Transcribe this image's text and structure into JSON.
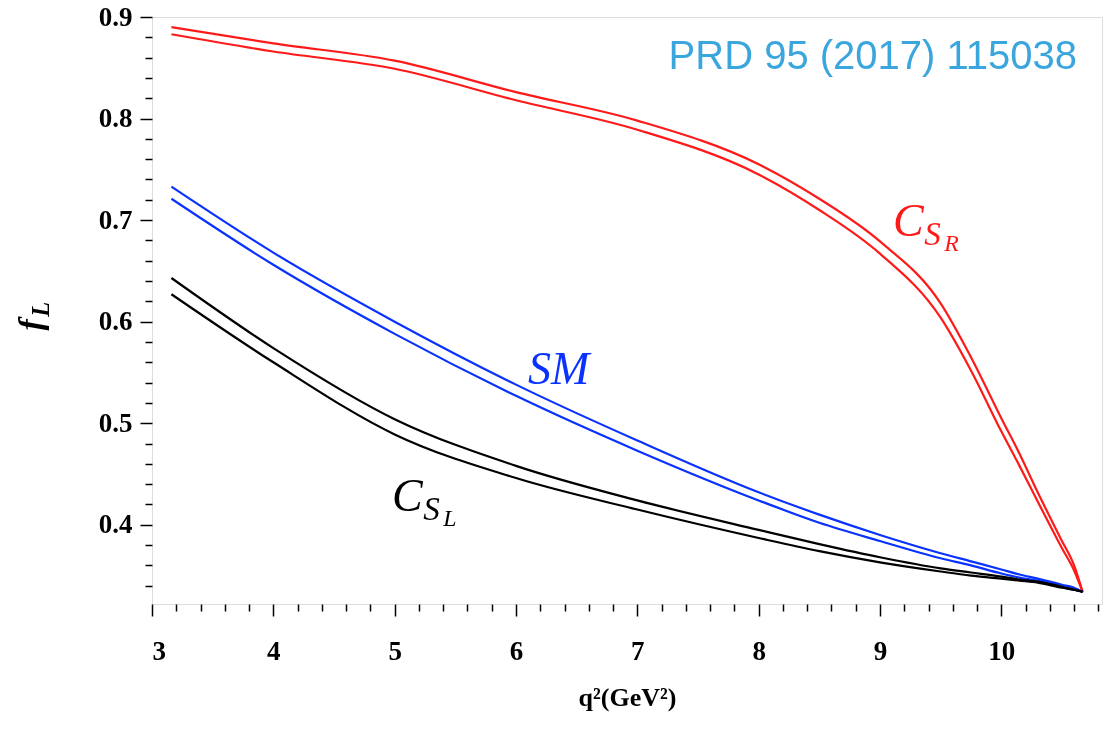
{
  "chart_data": {
    "type": "line",
    "xlabel": "q²(GeV²)",
    "ylabel": "f$_{L}$",
    "x": [
      3.16,
      4,
      5,
      6,
      7,
      8,
      8.5,
      9,
      9.5,
      9.75,
      10,
      10.15,
      10.3,
      10.5,
      10.6,
      10.67
    ],
    "series": [
      {
        "name": "C$_{S}$$_{R}$",
        "color": "#ff1a1a",
        "values": [
          0.89,
          0.874,
          0.857,
          0.826,
          0.798,
          0.755,
          0.721,
          0.679,
          0.618,
          0.565,
          0.505,
          0.47,
          0.432,
          0.384,
          0.36,
          0.334
        ]
      },
      {
        "color": "#ff1a1a",
        "values": [
          0.883,
          0.866,
          0.849,
          0.818,
          0.789,
          0.745,
          0.71,
          0.667,
          0.604,
          0.552,
          0.492,
          0.458,
          0.423,
          0.377,
          0.355,
          0.334
        ]
      },
      {
        "name": "SM",
        "color": "#0a32ff",
        "values": [
          0.733,
          0.668,
          0.6,
          0.538,
          0.483,
          0.432,
          0.41,
          0.39,
          0.372,
          0.364,
          0.356,
          0.351,
          0.347,
          0.341,
          0.338,
          0.334
        ]
      },
      {
        "color": "#0a32ff",
        "values": [
          0.721,
          0.656,
          0.588,
          0.527,
          0.473,
          0.424,
          0.402,
          0.384,
          0.367,
          0.36,
          0.352,
          0.348,
          0.345,
          0.339,
          0.336,
          0.334
        ]
      },
      {
        "name": "C$_{S}$$_{L}$",
        "color": "#000000",
        "values": [
          0.643,
          0.574,
          0.504,
          0.458,
          0.424,
          0.395,
          0.381,
          0.368,
          0.357,
          0.353,
          0.349,
          0.346,
          0.344,
          0.339,
          0.336,
          0.334
        ]
      },
      {
        "color": "#000000",
        "values": [
          0.627,
          0.56,
          0.489,
          0.446,
          0.415,
          0.387,
          0.374,
          0.363,
          0.354,
          0.35,
          0.347,
          0.345,
          0.343,
          0.338,
          0.336,
          0.334
        ]
      }
    ],
    "annotations": [
      "PRD 95 (2017) 115038"
    ],
    "xlim": [
      3,
      10.83
    ],
    "ylim": [
      0.322,
      0.9
    ],
    "xticks": [
      3,
      {
        "value": 3.2,
        "label": null
      },
      {
        "value": 3.4,
        "label": null
      },
      {
        "value": 3.6,
        "label": null
      },
      {
        "value": 3.8,
        "label": null
      },
      4,
      {
        "value": 4.2,
        "label": null
      },
      {
        "value": 4.4,
        "label": null
      },
      {
        "value": 4.6,
        "label": null
      },
      {
        "value": 4.8,
        "label": null
      },
      5,
      {
        "value": 5.2,
        "label": null
      },
      {
        "value": 5.4,
        "label": null
      },
      {
        "value": 5.6,
        "label": null
      },
      {
        "value": 5.8,
        "label": null
      },
      6,
      {
        "value": 6.2,
        "label": null
      },
      {
        "value": 6.4,
        "label": null
      },
      {
        "value": 6.6,
        "label": null
      },
      {
        "value": 6.8,
        "label": null
      },
      7,
      {
        "value": 7.2,
        "label": null
      },
      {
        "value": 7.4,
        "label": null
      },
      {
        "value": 7.6,
        "label": null
      },
      {
        "value": 7.8,
        "label": null
      },
      8,
      {
        "value": 8.2,
        "label": null
      },
      {
        "value": 8.4,
        "label": null
      },
      {
        "value": 8.6,
        "label": null
      },
      {
        "value": 8.8,
        "label": null
      },
      9,
      {
        "value": 9.2,
        "label": null
      },
      {
        "value": 9.4,
        "label": null
      },
      {
        "value": 9.6,
        "label": null
      },
      {
        "value": 9.8,
        "label": null
      },
      10,
      {
        "value": 10.2,
        "label": null
      },
      {
        "value": 10.4,
        "label": null
      },
      {
        "value": 10.6,
        "label": null
      },
      {
        "value": 10.8,
        "label": null
      }
    ],
    "yticks": [
      {
        "value": 0.34,
        "label": null
      },
      {
        "value": 0.36,
        "label": null
      },
      {
        "value": 0.38,
        "label": null
      },
      0.4,
      {
        "value": 0.42,
        "label": null
      },
      {
        "value": 0.44,
        "label": null
      },
      {
        "value": 0.46,
        "label": null
      },
      {
        "value": 0.48,
        "label": null
      },
      0.5,
      {
        "value": 0.52,
        "label": null
      },
      {
        "value": 0.54,
        "label": null
      },
      {
        "value": 0.56,
        "label": null
      },
      {
        "value": 0.58,
        "label": null
      },
      0.6,
      {
        "value": 0.62,
        "label": null
      },
      {
        "value": 0.64,
        "label": null
      },
      {
        "value": 0.66,
        "label": null
      },
      {
        "value": 0.68,
        "label": null
      },
      0.7,
      {
        "value": 0.72,
        "label": null
      },
      {
        "value": 0.74,
        "label": null
      },
      {
        "value": 0.76,
        "label": null
      },
      {
        "value": 0.78,
        "label": null
      },
      0.8,
      {
        "value": 0.82,
        "label": null
      },
      {
        "value": 0.84,
        "label": null
      },
      {
        "value": 0.86,
        "label": null
      },
      {
        "value": 0.88,
        "label": null
      },
      0.9
    ],
    "grid": false,
    "marker": "none",
    "line_style": "solid"
  }
}
